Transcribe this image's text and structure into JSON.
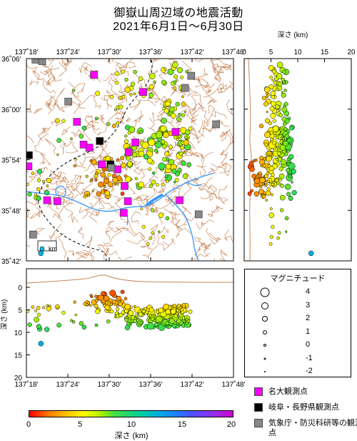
{
  "title": {
    "line1": "御嶽山周辺域の地震活動",
    "line2": "2021年6月1日～6月30日"
  },
  "map_axes": {
    "top_lon_labels": [
      "137˚18'",
      "137˚24'",
      "137˚30'",
      "137˚36'",
      "137˚42'",
      "137˚48'"
    ],
    "lat_labels": [
      "36˚06'",
      "36˚00'",
      "35˚54'",
      "35˚48'",
      "35˚42'"
    ],
    "scale_label": "km"
  },
  "depth_axis": {
    "label": "深さ (km)",
    "ticks": [
      "0",
      "5",
      "10",
      "15",
      "20"
    ]
  },
  "bottom_lon_labels": [
    "137˚18'",
    "137˚24'",
    "137˚30'",
    "137˚36'",
    "137˚42'",
    "137˚48'"
  ],
  "magnitude_legend": {
    "title": "マグニチュード",
    "items": [
      {
        "label": "4",
        "size": 13
      },
      {
        "label": "3",
        "size": 10
      },
      {
        "label": "2",
        "size": 8
      },
      {
        "label": "1",
        "size": 6
      },
      {
        "label": "0",
        "size": 4
      },
      {
        "label": "-1",
        "size": 3
      },
      {
        "label": "-2",
        "size": 2
      }
    ]
  },
  "station_legend": [
    {
      "label": "名大観測点",
      "color": "#ff00ff"
    },
    {
      "label": "岐阜・長野県観測点",
      "color": "#000000"
    },
    {
      "label": "気象庁・防災科研等の観測点",
      "color": "#888888"
    }
  ],
  "colorbar": {
    "title": "深さ (km)",
    "ticks": [
      "0",
      "5",
      "10",
      "15",
      "20"
    ],
    "range": [
      0,
      20
    ]
  },
  "colors": {
    "topo": "#c8875a",
    "river": "#3399ff",
    "boundary": "#000000"
  },
  "stations": [
    {
      "type": "名大",
      "lon": 137.422,
      "lat": 35.975
    },
    {
      "type": "名大",
      "lon": 137.463,
      "lat": 36.068
    },
    {
      "type": "名大",
      "lon": 137.582,
      "lat": 36.034
    },
    {
      "type": "名大",
      "lon": 137.563,
      "lat": 35.934
    },
    {
      "type": "名大",
      "lon": 137.438,
      "lat": 35.93
    },
    {
      "type": "名大",
      "lon": 137.452,
      "lat": 35.924
    },
    {
      "type": "名大",
      "lon": 137.547,
      "lat": 35.915
    },
    {
      "type": "名大",
      "lon": 137.482,
      "lat": 35.891
    },
    {
      "type": "名大",
      "lon": 137.52,
      "lat": 35.881
    },
    {
      "type": "名大",
      "lon": 137.305,
      "lat": 35.887
    },
    {
      "type": "名大",
      "lon": 137.35,
      "lat": 35.82
    },
    {
      "type": "名大",
      "lon": 137.375,
      "lat": 35.818
    },
    {
      "type": "名大",
      "lon": 137.537,
      "lat": 35.848
    },
    {
      "type": "名大",
      "lon": 137.545,
      "lat": 35.818
    },
    {
      "type": "名大",
      "lon": 137.535,
      "lat": 35.795
    },
    {
      "type": "名大",
      "lon": 137.66,
      "lat": 35.955
    },
    {
      "type": "名大",
      "lon": 137.67,
      "lat": 35.82
    },
    {
      "type": "県",
      "lon": 137.306,
      "lat": 35.909
    },
    {
      "type": "県",
      "lon": 137.477,
      "lat": 35.937
    },
    {
      "type": "県",
      "lon": 137.503,
      "lat": 35.891
    },
    {
      "type": "気象庁",
      "lon": 137.322,
      "lat": 36.098
    },
    {
      "type": "気象庁",
      "lon": 137.338,
      "lat": 36.095
    },
    {
      "type": "気象庁",
      "lon": 137.401,
      "lat": 36.015
    },
    {
      "type": "気象庁",
      "lon": 137.698,
      "lat": 36.066
    },
    {
      "type": "気象庁",
      "lon": 137.683,
      "lat": 36.042
    },
    {
      "type": "気象庁",
      "lon": 137.758,
      "lat": 35.97
    },
    {
      "type": "気象庁",
      "lon": 137.505,
      "lat": 35.884
    },
    {
      "type": "気象庁",
      "lon": 137.716,
      "lat": 35.792
    },
    {
      "type": "気象庁",
      "lon": 137.316,
      "lat": 35.752
    }
  ]
}
